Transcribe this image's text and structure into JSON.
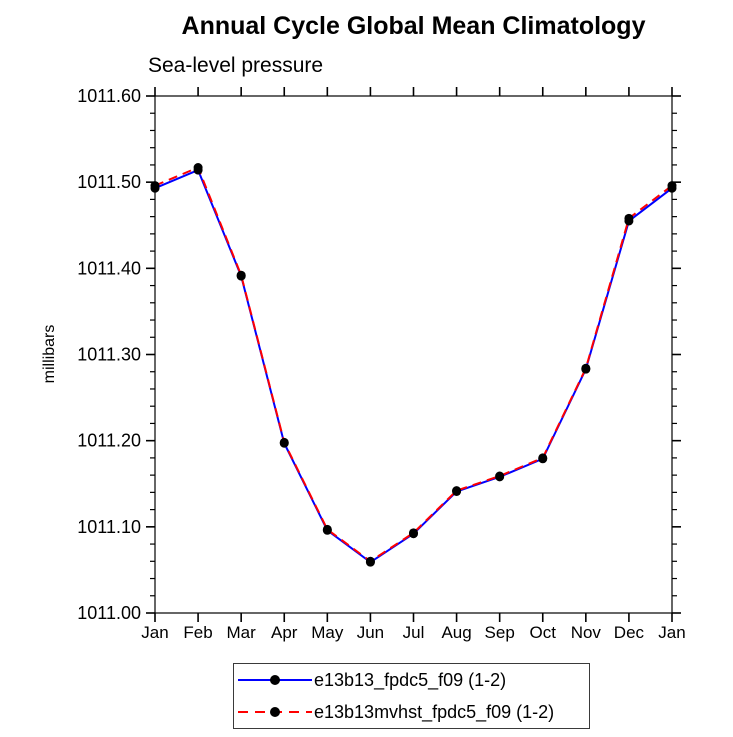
{
  "chart_data": {
    "type": "line",
    "title": "Annual Cycle Global Mean Climatology",
    "subtitle": "Sea-level pressure",
    "ylabel": "millibars",
    "categories": [
      "Jan",
      "Feb",
      "Mar",
      "Apr",
      "May",
      "Jun",
      "Jul",
      "Aug",
      "Sep",
      "Oct",
      "Nov",
      "Dec",
      "Jan"
    ],
    "ylim": [
      1011.0,
      1011.6
    ],
    "ytick_step": 0.1,
    "yminor_step": 0.02,
    "ytick_labels": [
      "1011.00",
      "1011.10",
      "1011.20",
      "1011.30",
      "1011.40",
      "1011.50",
      "1011.60"
    ],
    "grid": false,
    "legend_position": "bottom-center",
    "series": [
      {
        "name": "e13b13_fpdc5_f09 (1-2)",
        "color": "#0000ff",
        "style": "solid",
        "marker": "black-circle",
        "values": [
          1011.493,
          1011.514,
          1011.391,
          1011.197,
          1011.096,
          1011.059,
          1011.092,
          1011.141,
          1011.158,
          1011.179,
          1011.283,
          1011.455,
          1011.493
        ]
      },
      {
        "name": "e13b13mvhst_fpdc5_f09 (1-2)",
        "color": "#ff0000",
        "style": "dashed",
        "marker": "black-circle",
        "values": [
          1011.496,
          1011.517,
          1011.392,
          1011.198,
          1011.097,
          1011.06,
          1011.093,
          1011.142,
          1011.159,
          1011.18,
          1011.284,
          1011.458,
          1011.496
        ]
      }
    ]
  },
  "colors": {
    "background": "#ffffff",
    "axis": "#000000",
    "text": "#000000",
    "marker": "#000000",
    "series1": "#0000ff",
    "series2": "#ff0000"
  }
}
